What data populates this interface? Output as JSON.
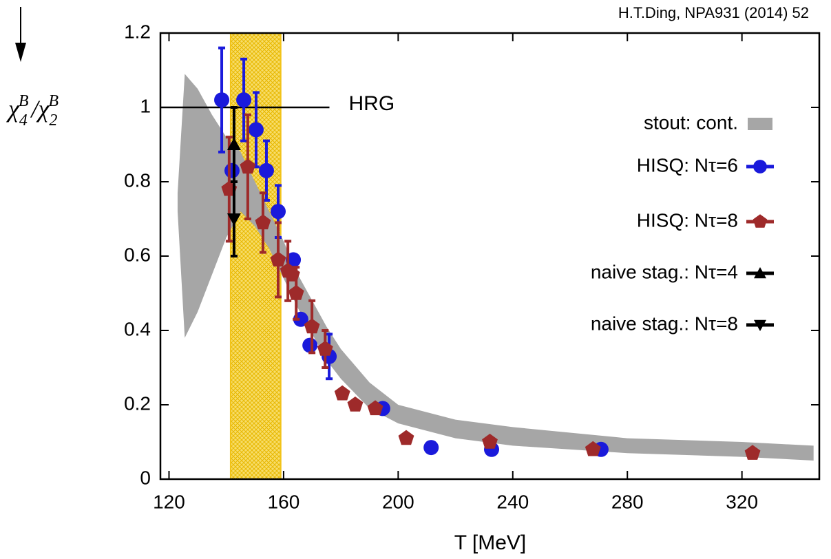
{
  "chart_data": {
    "type": "scatter",
    "citation": "H.T.Ding, NPA931 (2014) 52",
    "xlabel": "T [MeV]",
    "ylabel_parts": [
      "χ",
      "4",
      "B",
      "/",
      "χ",
      "2",
      "B"
    ],
    "xlim": [
      117,
      347
    ],
    "ylim": [
      0,
      1.2
    ],
    "xticks": [
      120,
      160,
      200,
      240,
      280,
      320
    ],
    "yticks": [
      0,
      0.2,
      0.4,
      0.6,
      0.8,
      1,
      1.2
    ],
    "transition_band": {
      "range": [
        141.5,
        159
      ],
      "color": "#f2c318"
    },
    "hrg": {
      "label": "HRG",
      "value": 1,
      "x": [
        117,
        176
      ]
    },
    "band": {
      "name": "stout: cont.",
      "color": "#a6a6a6",
      "x": [
        123,
        125.5,
        130,
        135,
        140,
        145,
        150,
        155,
        160,
        165,
        170,
        175,
        180,
        190,
        200,
        220,
        240,
        280,
        320,
        345
      ],
      "lower": [
        0.72,
        0.38,
        0.45,
        0.55,
        0.65,
        0.72,
        0.68,
        0.62,
        0.54,
        0.46,
        0.39,
        0.32,
        0.27,
        0.19,
        0.15,
        0.11,
        0.09,
        0.07,
        0.06,
        0.05
      ],
      "upper": [
        0.77,
        1.09,
        1.05,
        0.98,
        0.92,
        0.88,
        0.8,
        0.72,
        0.64,
        0.55,
        0.48,
        0.41,
        0.35,
        0.26,
        0.2,
        0.16,
        0.14,
        0.11,
        0.1,
        0.09
      ]
    },
    "series": [
      {
        "name": "HISQ: Nτ=6",
        "color": "#1a1adb",
        "marker": "circle",
        "x": [
          138.4,
          142,
          146.1,
          150.4,
          154,
          158.1,
          163.4,
          166,
          169.2,
          175.9,
          194.6,
          211.5,
          232.6,
          270.8
        ],
        "values": [
          1.02,
          0.83,
          1.02,
          0.94,
          0.83,
          0.72,
          0.59,
          0.43,
          0.36,
          0.33,
          0.19,
          0.085,
          0.08,
          0.08
        ],
        "errors": [
          0.14,
          null,
          0.11,
          0.1,
          0.08,
          0.07,
          null,
          null,
          null,
          0.06,
          null,
          null,
          null,
          null
        ]
      },
      {
        "name": "HISQ: Nτ=8",
        "color": "#9e2a2a",
        "marker": "pentagon",
        "x": [
          141,
          147.5,
          152.8,
          158.1,
          161.5,
          163,
          164.4,
          169.9,
          174.5,
          180.5,
          185,
          192,
          202.8,
          232,
          268,
          323.7
        ],
        "values": [
          0.78,
          0.84,
          0.69,
          0.59,
          0.56,
          0.55,
          0.5,
          0.41,
          0.35,
          0.23,
          0.2,
          0.19,
          0.11,
          0.1,
          0.08,
          0.07
        ],
        "errors": [
          0.14,
          0.14,
          0.08,
          0.1,
          0.08,
          null,
          0.07,
          0.07,
          0.05,
          null,
          null,
          null,
          null,
          null,
          null,
          null
        ]
      },
      {
        "name": "naive stag.: Nτ=4",
        "color": "#000000",
        "marker": "triangle-up",
        "x": [
          142.7
        ],
        "values": [
          0.9
        ],
        "errors": [
          0.1
        ]
      },
      {
        "name": "naive stag.: Nτ=8",
        "color": "#000000",
        "marker": "triangle-down",
        "x": [
          142.7
        ],
        "values": [
          0.7
        ],
        "errors": [
          0.1
        ]
      }
    ]
  }
}
